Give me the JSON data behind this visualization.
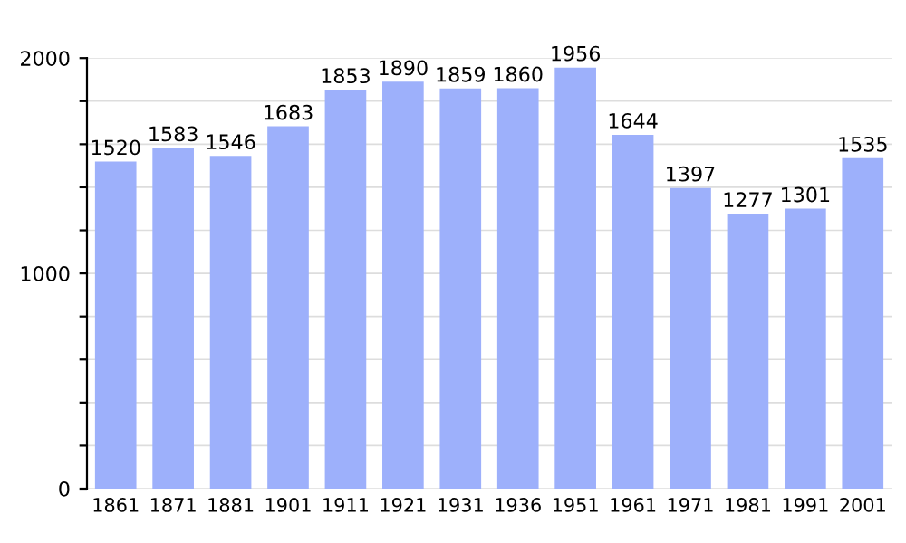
{
  "chart_data": {
    "type": "bar",
    "categories": [
      "1861",
      "1871",
      "1881",
      "1901",
      "1911",
      "1921",
      "1931",
      "1936",
      "1951",
      "1961",
      "1971",
      "1981",
      "1991",
      "2001"
    ],
    "values": [
      1520,
      1583,
      1546,
      1683,
      1853,
      1890,
      1859,
      1860,
      1956,
      1644,
      1397,
      1277,
      1301,
      1535
    ],
    "color": "#9db0fb",
    "ylim": [
      0,
      2000
    ],
    "yticks": [
      0,
      {
        "value": 200,
        "label": null
      },
      {
        "value": 400,
        "label": null
      },
      {
        "value": 600,
        "label": null
      },
      {
        "value": 800,
        "label": null
      },
      1000,
      {
        "value": 1200,
        "label": null
      },
      {
        "value": 1400,
        "label": null
      },
      {
        "value": 1600,
        "label": null
      },
      {
        "value": 1800,
        "label": null
      },
      2000
    ],
    "grid": true,
    "data_labels": true
  }
}
